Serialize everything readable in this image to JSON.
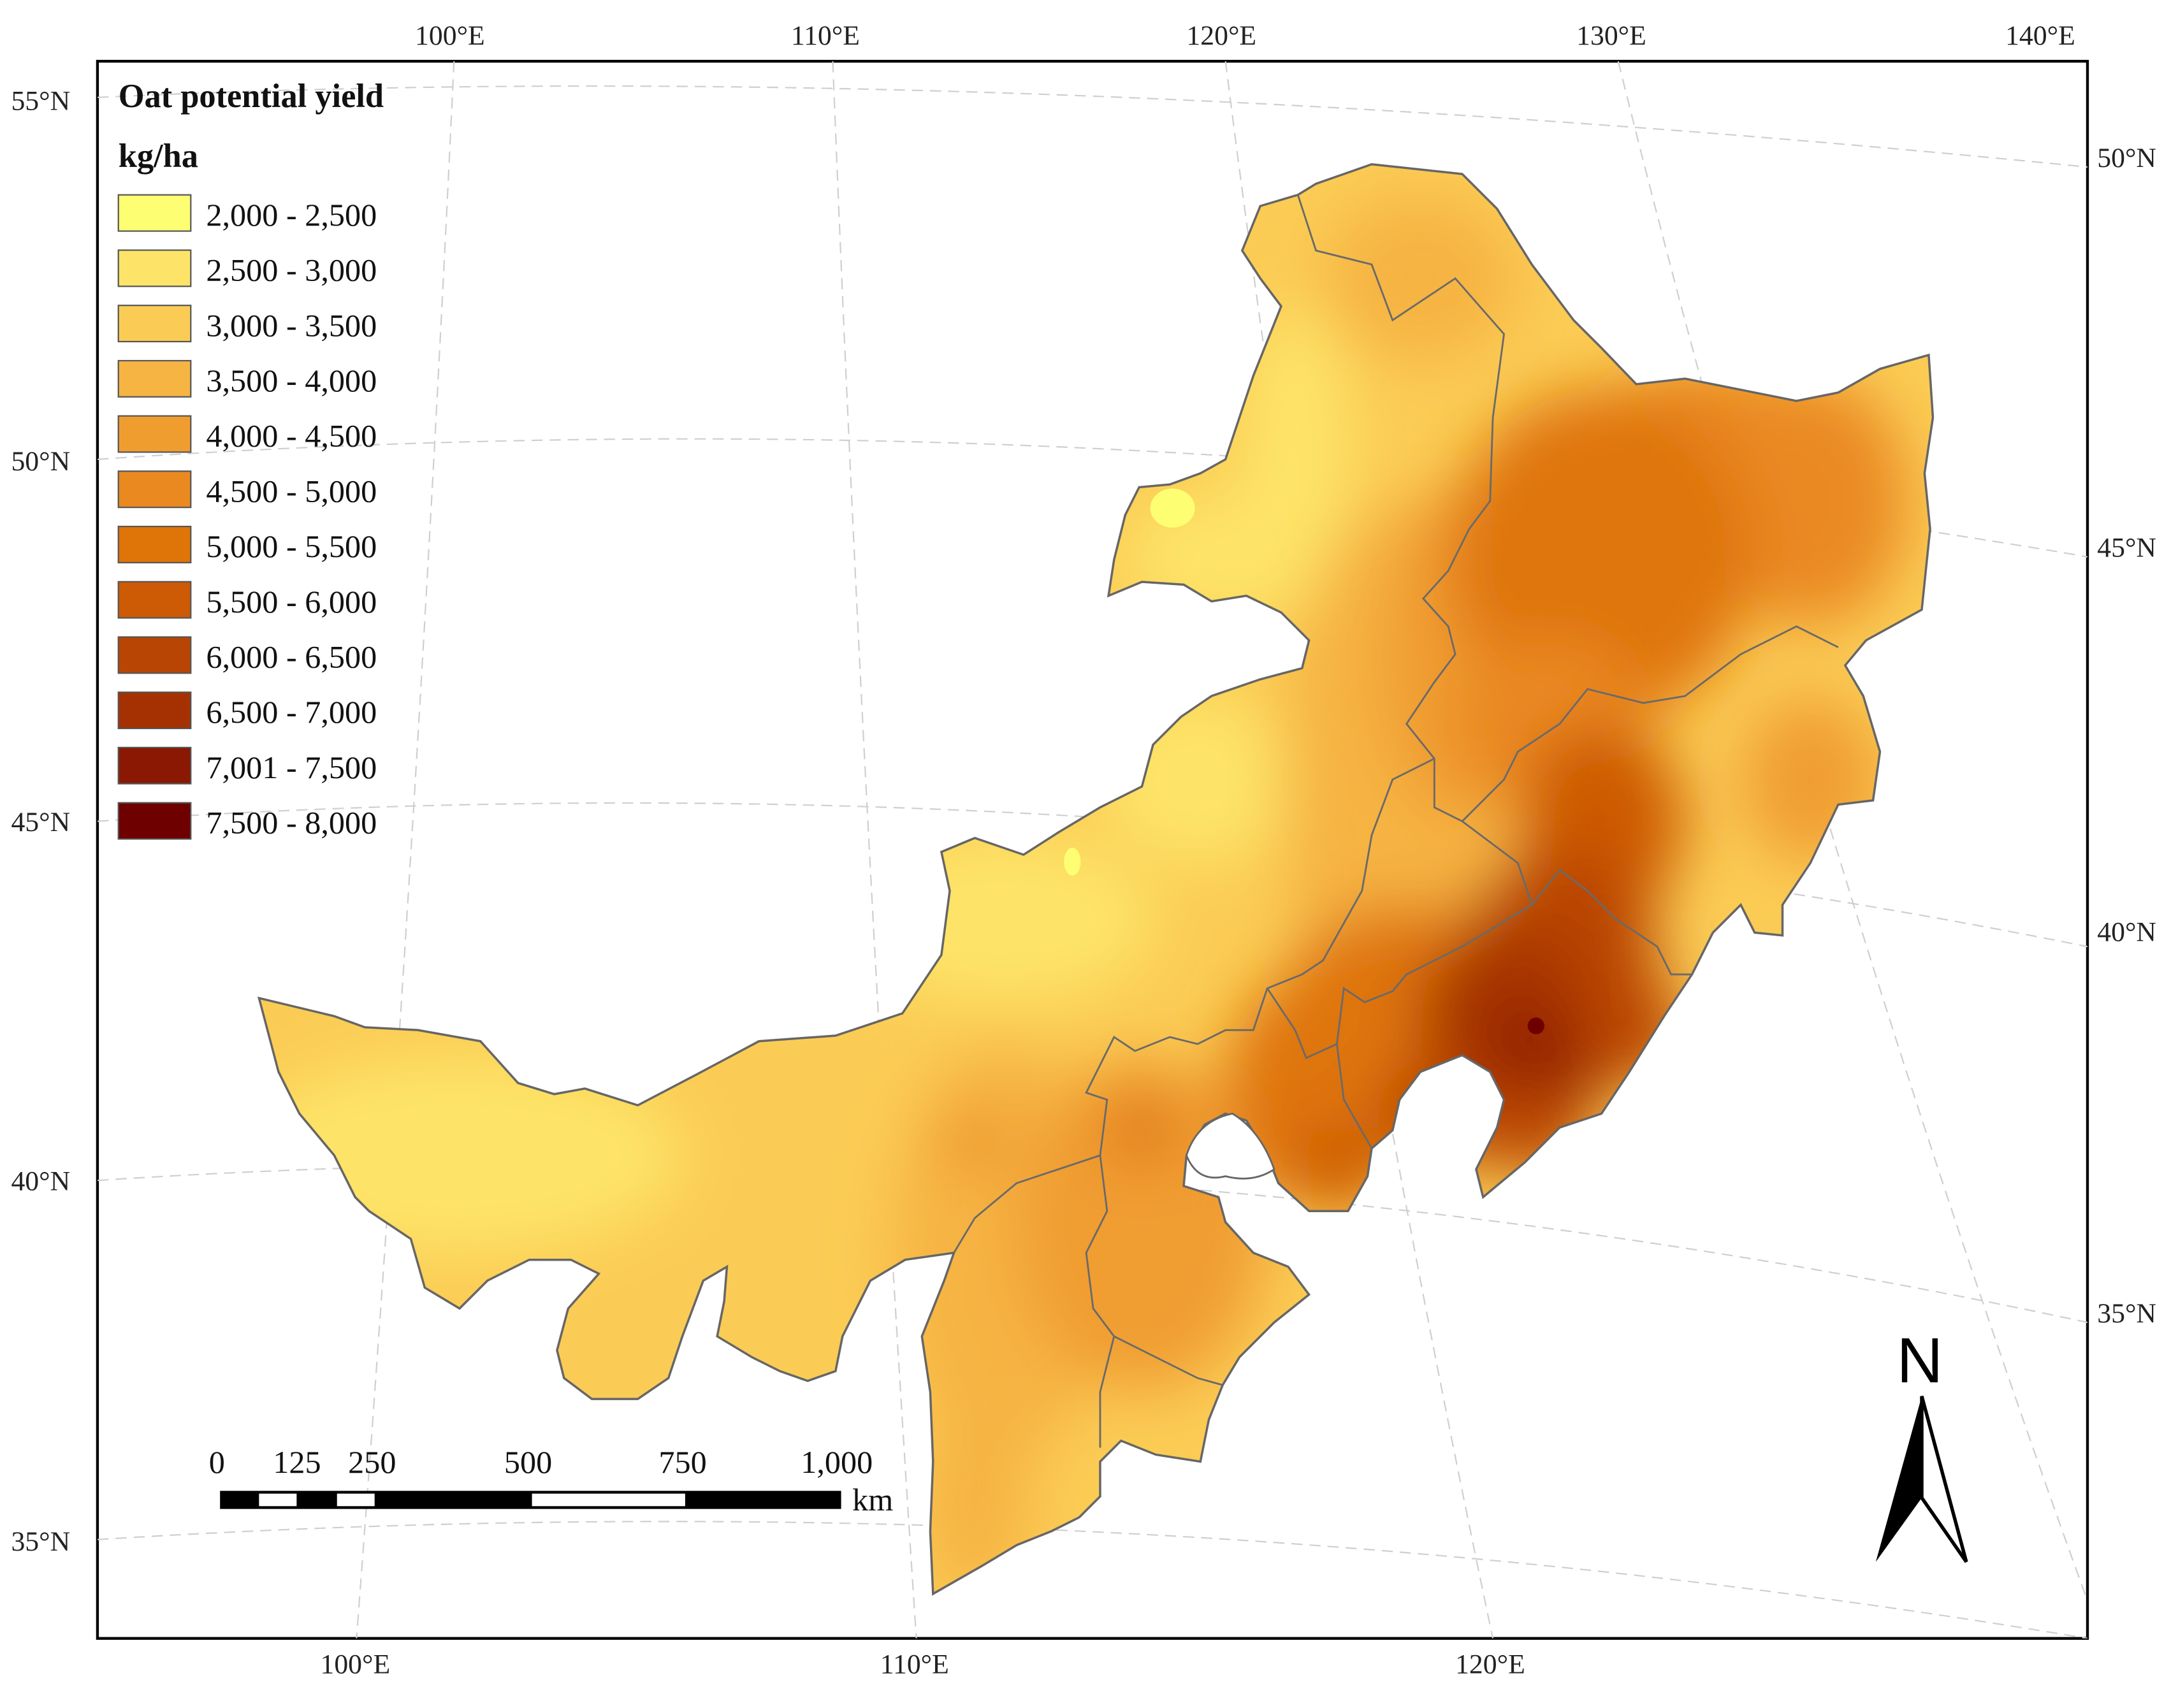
{
  "legend": {
    "title": "Oat potential yield",
    "unit": "kg/ha",
    "classes": [
      {
        "label": "2,000 - 2,500",
        "color": "#FEFE73"
      },
      {
        "label": "2,500 - 3,000",
        "color": "#FDE468"
      },
      {
        "label": "3,000 - 3,500",
        "color": "#FBCC55"
      },
      {
        "label": "3,500 - 4,000",
        "color": "#F6B443"
      },
      {
        "label": "4,000 - 4,500",
        "color": "#F09D30"
      },
      {
        "label": "4,500 - 5,000",
        "color": "#EA8920"
      },
      {
        "label": "5,000 - 5,500",
        "color": "#DF7408"
      },
      {
        "label": "5,500 - 6,000",
        "color": "#CD5A05"
      },
      {
        "label": "6,000 - 6,500",
        "color": "#B94504"
      },
      {
        "label": "6,500 - 7,000",
        "color": "#A53103"
      },
      {
        "label": "7,001 - 7,500",
        "color": "#8A1802"
      },
      {
        "label": "7,500 - 8,000",
        "color": "#6E0000"
      }
    ]
  },
  "graticule": {
    "top_lon_labels": [
      "100°E",
      "110°E",
      "120°E",
      "130°E",
      "140°E"
    ],
    "bottom_lon_labels": [
      "100°E",
      "110°E",
      "120°E"
    ],
    "left_lat_labels": [
      "55°N",
      "50°N",
      "45°N",
      "40°N",
      "35°N"
    ],
    "right_lat_labels": [
      "50°N",
      "45°N",
      "40°N",
      "35°N"
    ]
  },
  "scale_bar": {
    "tick_labels": [
      "0",
      "125",
      "250",
      "500",
      "750",
      "1,000"
    ],
    "unit": "km"
  },
  "north_arrow": {
    "label": "N",
    "icon": "north-arrow-icon"
  }
}
